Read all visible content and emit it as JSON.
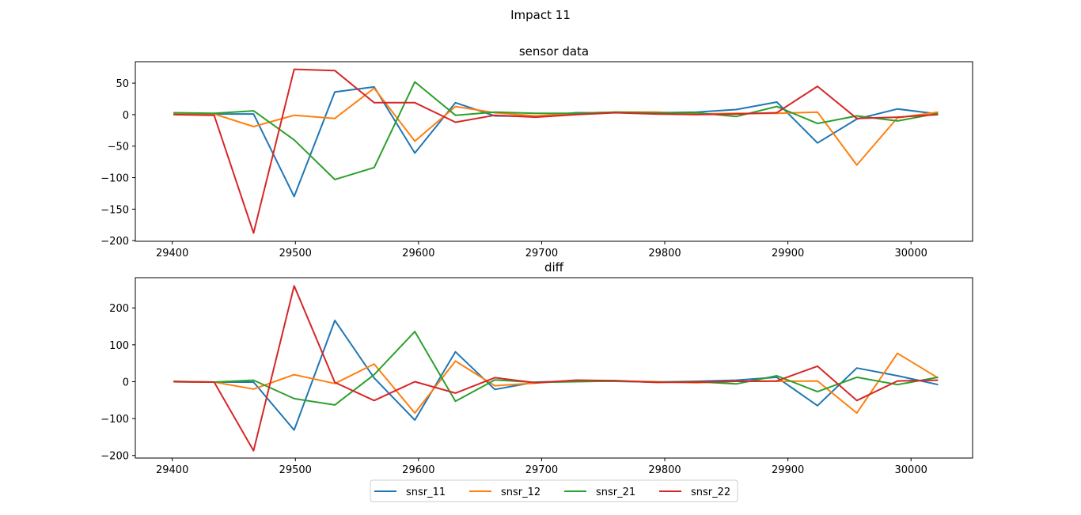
{
  "figure_title": "Impact 11",
  "colors": {
    "snsr_11": "#1f77b4",
    "snsr_12": "#ff7f0e",
    "snsr_21": "#2ca02c",
    "snsr_22": "#d62728"
  },
  "legend": {
    "placement": "bottom-center",
    "entries": [
      "snsr_11",
      "snsr_12",
      "snsr_21",
      "snsr_22"
    ]
  },
  "chart_data": [
    {
      "type": "line",
      "title": "sensor data",
      "xlabel": "",
      "ylabel": "",
      "xlim": [
        29370,
        30050
      ],
      "ylim": [
        -201,
        84
      ],
      "grid": false,
      "xticks": [
        29400,
        29500,
        29600,
        29700,
        29800,
        29900,
        30000
      ],
      "yticks": [
        50,
        0,
        -50,
        -100,
        -150,
        -200
      ],
      "x": [
        29401,
        29434,
        29466,
        29499,
        29532,
        29564,
        29597,
        29630,
        29662,
        29695,
        29728,
        29760,
        29793,
        29826,
        29858,
        29891,
        29924,
        29956,
        29989,
        30022
      ],
      "series": [
        {
          "name": "snsr_11",
          "values": [
            2,
            1,
            1,
            -130,
            36,
            44,
            -61,
            19,
            -2,
            -3,
            3,
            3,
            3,
            4,
            8,
            20,
            -45,
            -7,
            9,
            1
          ]
        },
        {
          "name": "snsr_12",
          "values": [
            2,
            1,
            -19,
            -1,
            -6,
            42,
            -42,
            13,
            3,
            -2,
            2,
            4,
            4,
            1,
            2,
            2,
            4,
            -80,
            -5,
            4
          ]
        },
        {
          "name": "snsr_21",
          "values": [
            3,
            2,
            6,
            -40,
            -103,
            -84,
            52,
            -1,
            4,
            2,
            2,
            4,
            3,
            3,
            -3,
            13,
            -14,
            -2,
            -10,
            2
          ]
        },
        {
          "name": "snsr_22",
          "values": [
            0,
            -1,
            -188,
            72,
            70,
            19,
            19,
            -12,
            -1,
            -4,
            0,
            3,
            1,
            0,
            1,
            3,
            45,
            -6,
            -4,
            0
          ]
        }
      ]
    },
    {
      "type": "line",
      "title": "diff",
      "xlabel": "",
      "ylabel": "",
      "xlim": [
        29370,
        30050
      ],
      "ylim": [
        -207,
        282
      ],
      "grid": false,
      "xticks": [
        29400,
        29500,
        29600,
        29700,
        29800,
        29900,
        30000
      ],
      "yticks": [
        200,
        100,
        0,
        -100,
        -200
      ],
      "x": [
        29401,
        29434,
        29466,
        29499,
        29532,
        29564,
        29597,
        29630,
        29662,
        29695,
        29728,
        29760,
        29793,
        29826,
        29858,
        29891,
        29924,
        29956,
        29989,
        30022
      ],
      "series": [
        {
          "name": "snsr_11",
          "values": [
            0,
            -1,
            -1,
            -131,
            166,
            10,
            -104,
            81,
            -21,
            -1,
            2,
            1,
            -1,
            1,
            4,
            12,
            -65,
            37,
            16,
            -8
          ]
        },
        {
          "name": "snsr_12",
          "values": [
            0,
            -1,
            -20,
            19,
            -5,
            48,
            -85,
            56,
            -11,
            -4,
            4,
            2,
            0,
            -3,
            1,
            1,
            2,
            -85,
            77,
            10
          ]
        },
        {
          "name": "snsr_21",
          "values": [
            1,
            -1,
            4,
            -46,
            -63,
            19,
            136,
            -53,
            5,
            -2,
            0,
            2,
            -1,
            0,
            -6,
            16,
            -27,
            12,
            -8,
            12
          ]
        },
        {
          "name": "snsr_22",
          "values": [
            0,
            -1,
            -187,
            260,
            -2,
            -51,
            0,
            -31,
            11,
            -3,
            4,
            3,
            -2,
            -1,
            1,
            2,
            42,
            -51,
            2,
            4
          ]
        }
      ]
    }
  ]
}
